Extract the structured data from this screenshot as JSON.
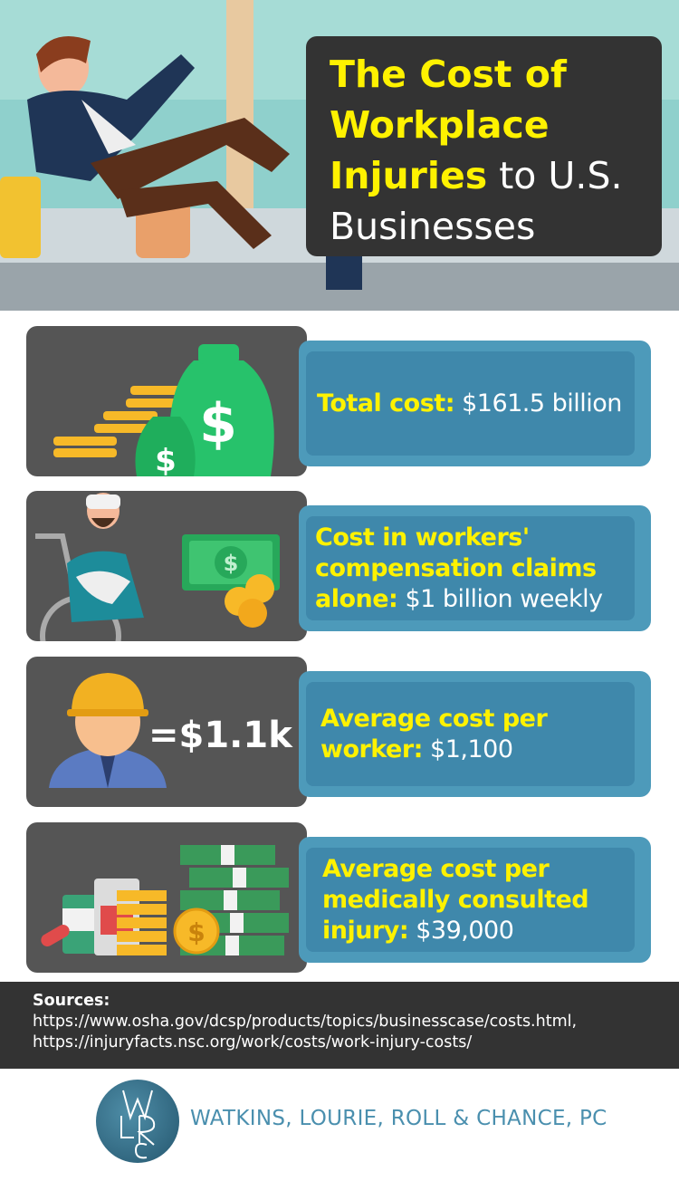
{
  "title": {
    "highlight_line1": "The Cost of",
    "highlight_line2": "Workplace",
    "highlight_line3": "Injuries",
    "rest_line3": " to U.S.",
    "line4": "Businesses"
  },
  "stats": [
    {
      "label": "Total cost:",
      "value": " $161.5 billion",
      "icon": "money-bags-coins-icon"
    },
    {
      "label": "Cost in workers' compensation claims alone:",
      "value": " $1 billion weekly",
      "icon": "injured-worker-wheelchair-icon"
    },
    {
      "label": "Average cost per worker:",
      "value": " $1,100",
      "icon": "hardhat-worker-icon",
      "badge": "=$1.1k"
    },
    {
      "label": "Average cost per medically consulted injury:",
      "value": " $39,000",
      "icon": "medicine-cash-stack-icon"
    }
  ],
  "sources": {
    "heading": "Sources:",
    "links": [
      "https://www.osha.gov/dcsp/products/topics/businesscase/costs.html,",
      "https://injuryfacts.nsc.org/work/costs/work-injury-costs/"
    ]
  },
  "footer": {
    "firm_name": "WATKINS, LOURIE, ROLL & CHANCE, PC",
    "logo_letters": "WLRC"
  },
  "colors": {
    "yellow": "#fff200",
    "card_blue": "#4d9aba",
    "card_inner": "#3f88ab",
    "dark": "#333333",
    "panel": "#555555",
    "firm": "#4a8fae"
  }
}
